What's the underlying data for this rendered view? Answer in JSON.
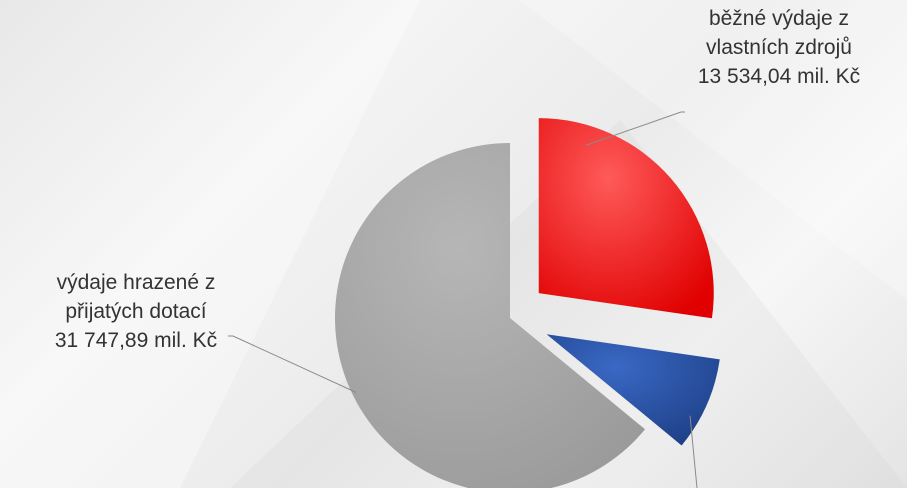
{
  "chart_data": {
    "type": "pie",
    "title": "",
    "slices": [
      {
        "label_lines": [
          "běžné výdaje z",
          "vlastních zdrojů",
          "13 534,04 mil. Kč"
        ],
        "value": 13534.04,
        "color": "#ee1111"
      },
      {
        "label_lines": [],
        "value": 4300,
        "color": "#2a4f9a"
      },
      {
        "label_lines": [
          "výdaje hrazené z",
          "přijatých dotací",
          "31 747,89 mil. Kč"
        ],
        "value": 31747.89,
        "color": "#a2a2a2"
      }
    ],
    "units": "mil. Kč",
    "legend": "none",
    "exploded": true
  }
}
